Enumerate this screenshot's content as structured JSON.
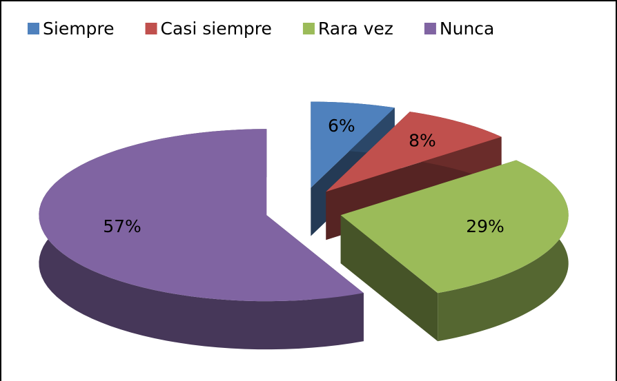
{
  "chart_data": {
    "type": "pie3d",
    "categories": [
      "Siempre",
      "Casi siempre",
      "Rara vez",
      "Nunca"
    ],
    "values": [
      6,
      8,
      29,
      57
    ],
    "value_labels": [
      "6%",
      "8%",
      "29%",
      "57%"
    ],
    "colors": [
      "#4f81bd",
      "#c0504d",
      "#9bbb59",
      "#8064a2"
    ],
    "legend": "top"
  }
}
